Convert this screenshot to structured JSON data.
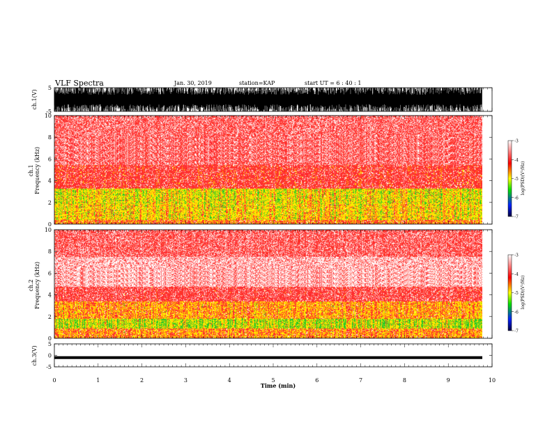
{
  "header": {
    "title": "VLF Spectra",
    "date": "Jan. 30, 2019",
    "station": "station=KAP",
    "start": "start UT =  6 : 40 : 1"
  },
  "chart_data": [
    {
      "type": "line",
      "panel": "ch1-waveform",
      "ylabel": "ch.1(V)",
      "ylim": [
        -5,
        5
      ],
      "yticks": [
        5,
        -5
      ],
      "xlim": [
        0,
        10
      ],
      "series": [
        {
          "values_description_range": [
            -5,
            5
          ]
        }
      ]
    },
    {
      "type": "heatmap",
      "panel": "ch1-spectrogram",
      "ylabel": "ch.1\nFrequency (kHz)",
      "ylim": [
        0,
        10
      ],
      "yticks": [
        0,
        2,
        4,
        6,
        8,
        10
      ],
      "xlim": [
        0,
        10
      ],
      "colorbar": {
        "label": "log(PSD)(V²/Hz)",
        "range": [
          -7,
          -3
        ],
        "ticks": [
          -3,
          -4,
          -5,
          -6,
          -7
        ]
      }
    },
    {
      "type": "heatmap",
      "panel": "ch2-spectrogram",
      "ylabel": "ch.2\nFrequency (kHz)",
      "ylim": [
        0,
        10
      ],
      "yticks": [
        0,
        2,
        4,
        6,
        8,
        10
      ],
      "xlim": [
        0,
        10
      ],
      "colorbar": {
        "label": "log(PSD)(V²/Hz)",
        "range": [
          -7,
          -3
        ],
        "ticks": [
          -3,
          -4,
          -5,
          -6,
          -7
        ]
      }
    },
    {
      "type": "line",
      "panel": "ch3-waveform",
      "ylabel": "ch.3(V)",
      "ylim": [
        -5,
        5
      ],
      "yticks": [
        5,
        0,
        -5
      ],
      "xlim": [
        0,
        10
      ],
      "xlabel": "Time (min)",
      "xticks": [
        0,
        1,
        2,
        3,
        4,
        5,
        6,
        7,
        8,
        9,
        10
      ],
      "series": [
        {
          "constant_value": -1
        }
      ]
    }
  ],
  "labels": {
    "ch1_wave_ylabel": "ch.1(V)",
    "ch1_spec_ylabel_a": "ch.1",
    "ch1_spec_ylabel_b": "Frequency (kHz)",
    "ch2_spec_ylabel_a": "ch.2",
    "ch2_spec_ylabel_b": "Frequency (kHz)",
    "ch3_wave_ylabel": "ch.3(V)",
    "xlabel": "Time (min)",
    "cbar_label": "log(PSD)(V²/Hz)"
  },
  "colors": {
    "hot": "#ffffff",
    "red": "#ff2020",
    "yellow": "#ffe000",
    "green": "#30d030",
    "blue": "#0030ff",
    "navy": "#000060"
  }
}
